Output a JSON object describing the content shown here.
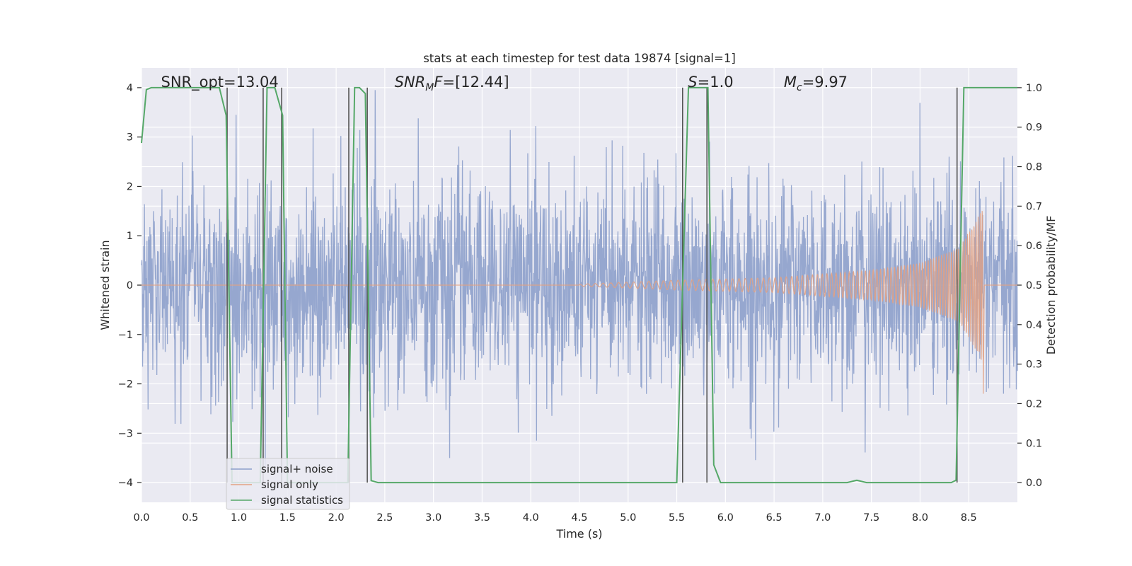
{
  "chart_data": {
    "type": "line",
    "title": "stats at each timestep for test data 19874 [signal=1]",
    "xlabel": "Time (s)",
    "ylabel_left": "Whitened strain",
    "ylabel_right": "Detection probability/MF",
    "xlim": [
      0.0,
      9.0
    ],
    "ylim_left": [
      -4.4,
      4.4
    ],
    "ylim_right": [
      -0.05,
      1.05
    ],
    "x_ticks": [
      0.0,
      0.5,
      1.0,
      1.5,
      2.0,
      2.5,
      3.0,
      3.5,
      4.0,
      4.5,
      5.0,
      5.5,
      6.0,
      6.5,
      7.0,
      7.5,
      8.0,
      8.5
    ],
    "x_tick_labels": [
      "0.0",
      "0.5",
      "1.0",
      "1.5",
      "2.0",
      "2.5",
      "3.0",
      "3.5",
      "4.0",
      "4.5",
      "5.0",
      "5.5",
      "6.0",
      "6.5",
      "7.0",
      "7.5",
      "8.0",
      "8.5"
    ],
    "y_left_ticks": [
      -4,
      -3,
      -2,
      -1,
      0,
      1,
      2,
      3,
      4
    ],
    "y_left_tick_labels": [
      "−4",
      "−3",
      "−2",
      "−1",
      "0",
      "1",
      "2",
      "3",
      "4"
    ],
    "y_right_ticks": [
      0.0,
      0.1,
      0.2,
      0.3,
      0.4,
      0.5,
      0.6,
      0.7,
      0.8,
      0.9,
      1.0
    ],
    "y_right_tick_labels": [
      "0.0",
      "0.1",
      "0.2",
      "0.3",
      "0.4",
      "0.5",
      "0.6",
      "0.7",
      "0.8",
      "0.9",
      "1.0"
    ],
    "grid": true,
    "legend_position": "lower-left",
    "series": [
      {
        "name": "signal+ noise",
        "color": "#8da0cb",
        "kind": "noisy strain, approx amplitude range -4 to 4 over 0.0-9.0 s (schematic)"
      },
      {
        "name": "signal only",
        "color": "#e1a183",
        "kind": "chirp, grows from ~0.05 at 4.5 s to ~1.6 peak near 8.65 s, ends at 8.65 s",
        "envelope_points": [
          [
            4.5,
            0.02
          ],
          [
            5.5,
            0.1
          ],
          [
            6.5,
            0.15
          ],
          [
            7.5,
            0.3
          ],
          [
            8.0,
            0.45
          ],
          [
            8.4,
            0.75
          ],
          [
            8.6,
            1.4
          ],
          [
            8.65,
            1.6
          ]
        ]
      },
      {
        "name": "signal statistics",
        "color": "#55a868",
        "axis": "right",
        "points": [
          [
            0.0,
            0.86
          ],
          [
            0.05,
            0.995
          ],
          [
            0.1,
            1.0
          ],
          [
            0.8,
            1.0
          ],
          [
            0.87,
            0.93
          ],
          [
            0.93,
            0.0
          ],
          [
            1.22,
            0.0
          ],
          [
            1.29,
            1.0
          ],
          [
            1.37,
            1.0
          ],
          [
            1.45,
            0.93
          ],
          [
            1.5,
            0.0
          ],
          [
            2.12,
            0.0
          ],
          [
            2.19,
            1.0
          ],
          [
            2.24,
            1.0
          ],
          [
            2.3,
            0.985
          ],
          [
            2.36,
            0.005
          ],
          [
            2.43,
            0.0
          ],
          [
            5.5,
            0.0
          ],
          [
            5.62,
            1.0
          ],
          [
            5.82,
            1.0
          ],
          [
            5.88,
            0.045
          ],
          [
            5.95,
            0.0
          ],
          [
            7.25,
            0.0
          ],
          [
            7.35,
            0.006
          ],
          [
            7.45,
            0.0
          ],
          [
            8.32,
            0.0
          ],
          [
            8.37,
            0.006
          ],
          [
            8.45,
            1.0
          ],
          [
            9.0,
            1.0
          ]
        ]
      }
    ],
    "vertical_lines": [
      0.88,
      1.25,
      1.44,
      2.13,
      2.32,
      5.56,
      5.81,
      8.38
    ],
    "annotations": [
      {
        "text": "SNR_opt=13.04",
        "x": 0.2,
        "y": 4.1
      },
      {
        "text": "SNRMF=[12.44]",
        "x": 2.6,
        "y": 4.1
      },
      {
        "text": "S=1.0",
        "x": 5.6,
        "y": 4.1
      },
      {
        "text": "Mc=9.97",
        "x": 6.6,
        "y": 4.1
      }
    ],
    "legend": [
      {
        "label": "signal+ noise",
        "color": "#8da0cb"
      },
      {
        "label": "signal only",
        "color": "#e1a183"
      },
      {
        "label": "signal statistics",
        "color": "#55a868"
      }
    ]
  },
  "colors": {
    "plot_background": "#eaeaf2",
    "grid": "#ffffff",
    "vline": "#555555"
  }
}
